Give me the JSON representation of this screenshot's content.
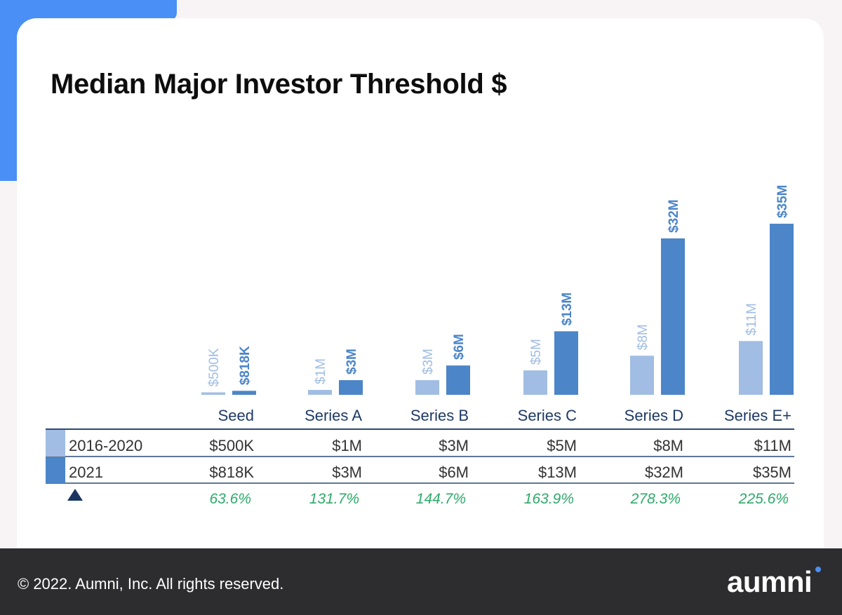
{
  "header": {
    "title": "Median Major Investor Threshold $"
  },
  "footer": {
    "copyright": "© 2022. Aumni, Inc. All rights reserved.",
    "brand": "aumni"
  },
  "colors": {
    "series_2016_2020": "#a1bde3",
    "series_2021": "#4c85c8",
    "delta": "#2eaa6a",
    "axis_text": "#1e3a64"
  },
  "chart_data": {
    "type": "bar",
    "title": "Median Major Investor Threshold $",
    "categories": [
      "Seed",
      "Series A",
      "Series B",
      "Series C",
      "Series D",
      "Series E+"
    ],
    "series": [
      {
        "name": "2016-2020",
        "values": [
          0.5,
          1,
          3,
          5,
          8,
          11
        ],
        "labels": [
          "$500K",
          "$1M",
          "$3M",
          "$5M",
          "$8M",
          "$11M"
        ]
      },
      {
        "name": "2021",
        "values": [
          0.818,
          3,
          6,
          13,
          32,
          35
        ],
        "labels": [
          "$818K",
          "$3M",
          "$6M",
          "$13M",
          "$32M",
          "$35M"
        ]
      }
    ],
    "table": {
      "rows": [
        {
          "label": "2016-2020",
          "cells": [
            "$500K",
            "$1M",
            "$3M",
            "$5M",
            "$8M",
            "$11M"
          ]
        },
        {
          "label": "2021",
          "cells": [
            "$818K",
            "$3M",
            "$6M",
            "$13M",
            "$32M",
            "$35M"
          ]
        }
      ],
      "change": [
        "63.6%",
        "131.7%",
        "144.7%",
        "163.9%",
        "278.3%",
        "225.6%"
      ]
    }
  }
}
